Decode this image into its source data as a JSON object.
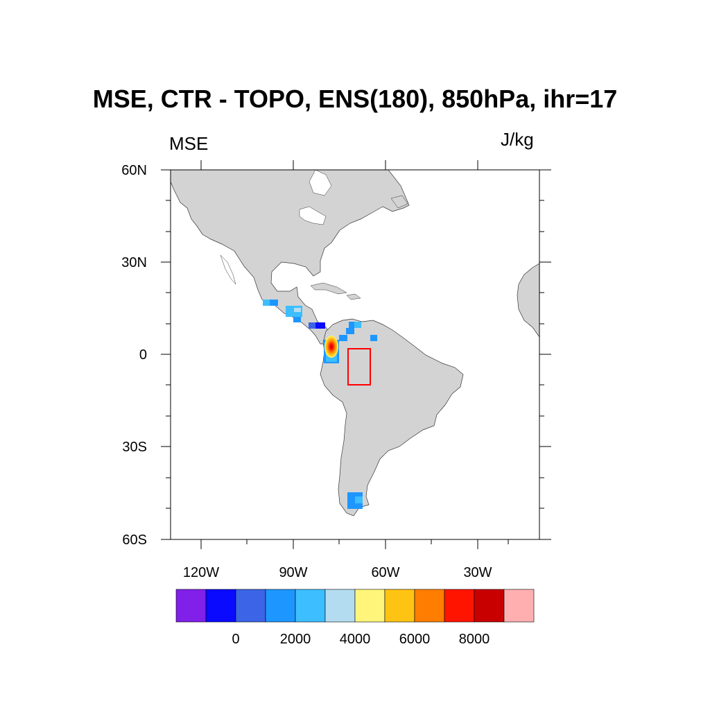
{
  "title": "MSE, CTR - TOPO, ENS(180), 850hPa, ihr=17",
  "left_string": "MSE",
  "right_string": "J/kg",
  "map": {
    "lon_range": [
      -140,
      20
    ],
    "lat_range": [
      -60,
      60
    ],
    "land_color": "#d3d3d3",
    "ocean_color": "#ffffff",
    "box_color": "#ff0000",
    "lat_ticks": [
      "60N",
      "30N",
      "0",
      "30S",
      "60S"
    ],
    "lon_ticks": [
      "120W",
      "90W",
      "60W",
      "30W"
    ]
  },
  "colorbar": {
    "colors": [
      "#8020e8",
      "#0a0aff",
      "#3c64e6",
      "#1e96ff",
      "#3cbeff",
      "#b4dcf0",
      "#fff57a",
      "#ffc314",
      "#ff7d00",
      "#ff1400",
      "#c80000",
      "#ffafaf"
    ],
    "labels": [
      "0",
      "2000",
      "4000",
      "6000",
      "8000"
    ]
  }
}
